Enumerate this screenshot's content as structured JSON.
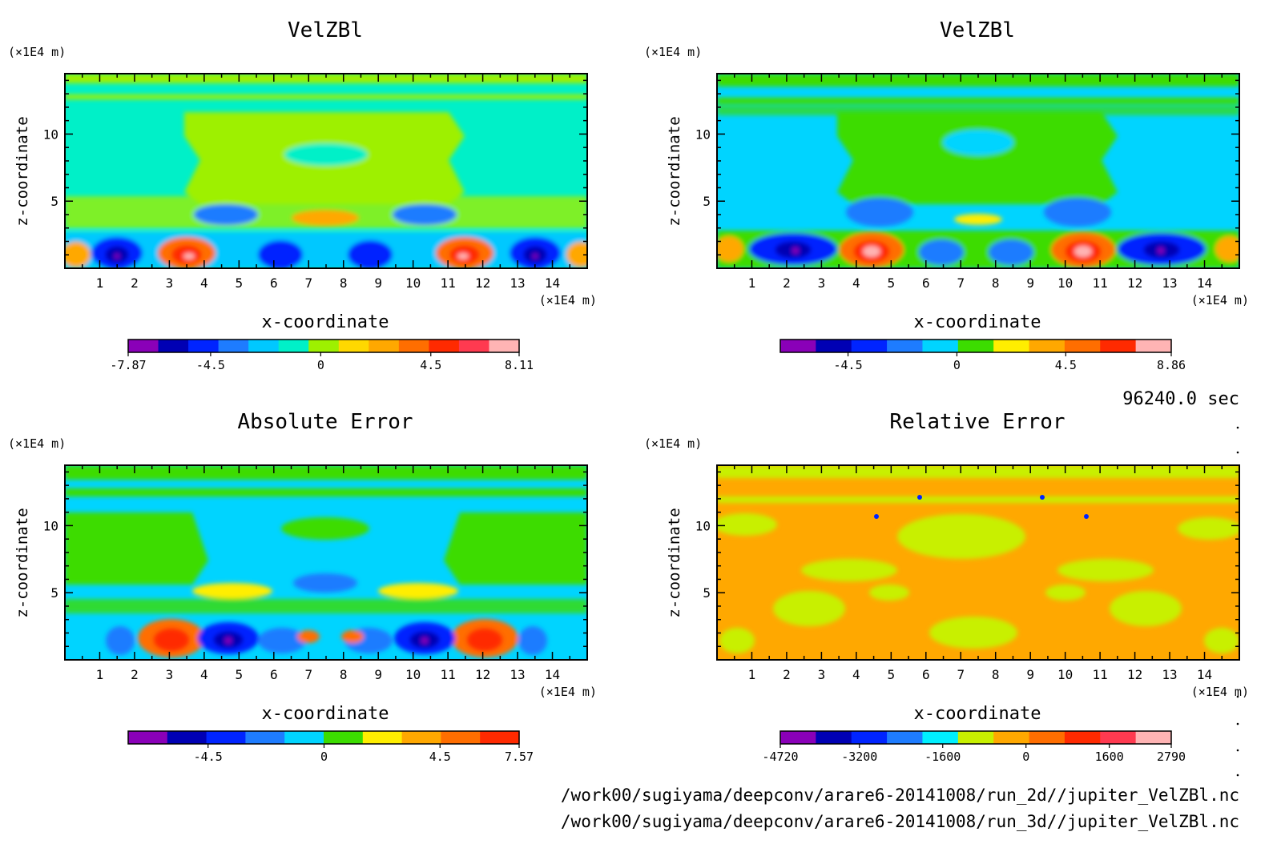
{
  "time_label": "96240.0 sec",
  "footer_paths": [
    "/work00/sugiyama/deepconv/arare6-20141008/run_2d//jupiter_VelZBl.nc",
    "/work00/sugiyama/deepconv/arare6-20141008/run_3d//jupiter_VelZBl.nc"
  ],
  "chart_data": [
    {
      "type": "heatmap",
      "id": "p1",
      "title": "VelZBl",
      "xlabel": "x-coordinate",
      "ylabel": "z-coordinate",
      "x_unit": "(×1E4 m)",
      "y_unit": "(×1E4 m)",
      "xlim": [
        0,
        15
      ],
      "ylim": [
        0,
        14.5
      ],
      "x_ticks": [
        1,
        2,
        3,
        4,
        5,
        6,
        7,
        8,
        9,
        10,
        11,
        12,
        13,
        14
      ],
      "y_ticks": [
        5,
        10
      ],
      "colorbar": {
        "min": -7.87,
        "max": 8.11,
        "tick_values": [
          -7.87,
          -4.5,
          0,
          4.5,
          8.11
        ],
        "tick_labels": [
          "-7.87",
          "-4.5",
          "0",
          "4.5",
          "8.11"
        ],
        "colors": [
          "#8a00b8",
          "#0000b4",
          "#0024ff",
          "#1e7cff",
          "#00c8ff",
          "#00f0c8",
          "#9ef000",
          "#ffd800",
          "#ffa800",
          "#ff6e00",
          "#ff2a00",
          "#ff3a50",
          "#ffb4b4"
        ]
      }
    },
    {
      "type": "heatmap",
      "id": "p2",
      "title": "VelZBl",
      "xlabel": "x-coordinate",
      "ylabel": "z-coordinate",
      "x_unit": "(×1E4 m)",
      "y_unit": "(×1E4 m)",
      "xlim": [
        0,
        15
      ],
      "ylim": [
        0,
        14.5
      ],
      "x_ticks": [
        1,
        2,
        3,
        4,
        5,
        6,
        7,
        8,
        9,
        10,
        11,
        12,
        13,
        14
      ],
      "y_ticks": [
        5,
        10
      ],
      "colorbar": {
        "min": -7.3,
        "max": 8.86,
        "tick_values": [
          -4.5,
          0,
          4.5,
          8.86
        ],
        "tick_labels": [
          "-4.5",
          "0",
          "4.5",
          "8.86"
        ],
        "colors": [
          "#8a00b8",
          "#0000b4",
          "#0024ff",
          "#1e7cff",
          "#00d4ff",
          "#3cdc00",
          "#ffee00",
          "#ffa800",
          "#ff6e00",
          "#ff2a00",
          "#ffb4b4"
        ]
      }
    },
    {
      "type": "heatmap",
      "id": "p3",
      "title": "Absolute Error",
      "xlabel": "x-coordinate",
      "ylabel": "z-coordinate",
      "x_unit": "(×1E4 m)",
      "y_unit": "(×1E4 m)",
      "xlim": [
        0,
        15
      ],
      "ylim": [
        0,
        14.5
      ],
      "x_ticks": [
        1,
        2,
        3,
        4,
        5,
        6,
        7,
        8,
        9,
        10,
        11,
        12,
        13,
        14
      ],
      "y_ticks": [
        5,
        10
      ],
      "colorbar": {
        "min": -7.6,
        "max": 7.57,
        "tick_values": [
          -4.5,
          0,
          4.5,
          7.57
        ],
        "tick_labels": [
          "-4.5",
          "0",
          "4.5",
          "7.57"
        ],
        "colors": [
          "#8a00b8",
          "#0000b4",
          "#0024ff",
          "#1e7cff",
          "#00d4ff",
          "#3cdc00",
          "#ffee00",
          "#ffa800",
          "#ff6e00",
          "#ff2a00"
        ]
      }
    },
    {
      "type": "heatmap",
      "id": "p4",
      "title": "Relative Error",
      "xlabel": "x-coordinate",
      "ylabel": "z-coordinate",
      "x_unit": "(×1E4 m)",
      "y_unit": "(×1E4 m)",
      "xlim": [
        0,
        15
      ],
      "ylim": [
        0,
        14.5
      ],
      "x_ticks": [
        1,
        2,
        3,
        4,
        5,
        6,
        7,
        8,
        9,
        10,
        11,
        12,
        13,
        14
      ],
      "y_ticks": [
        5,
        10
      ],
      "colorbar": {
        "min": -4720,
        "max": 2790,
        "tick_values": [
          -4720,
          -3200,
          -1600,
          0,
          1600,
          2790
        ],
        "tick_labels": [
          "-4720",
          "-3200",
          "-1600",
          "0",
          "1600",
          "2790"
        ],
        "colors": [
          "#8a00b8",
          "#0000b4",
          "#0024ff",
          "#1e7cff",
          "#00f0ff",
          "#c8f000",
          "#ffa800",
          "#ff6e00",
          "#ff2a00",
          "#ff3a50",
          "#ffb4b4"
        ]
      }
    }
  ]
}
